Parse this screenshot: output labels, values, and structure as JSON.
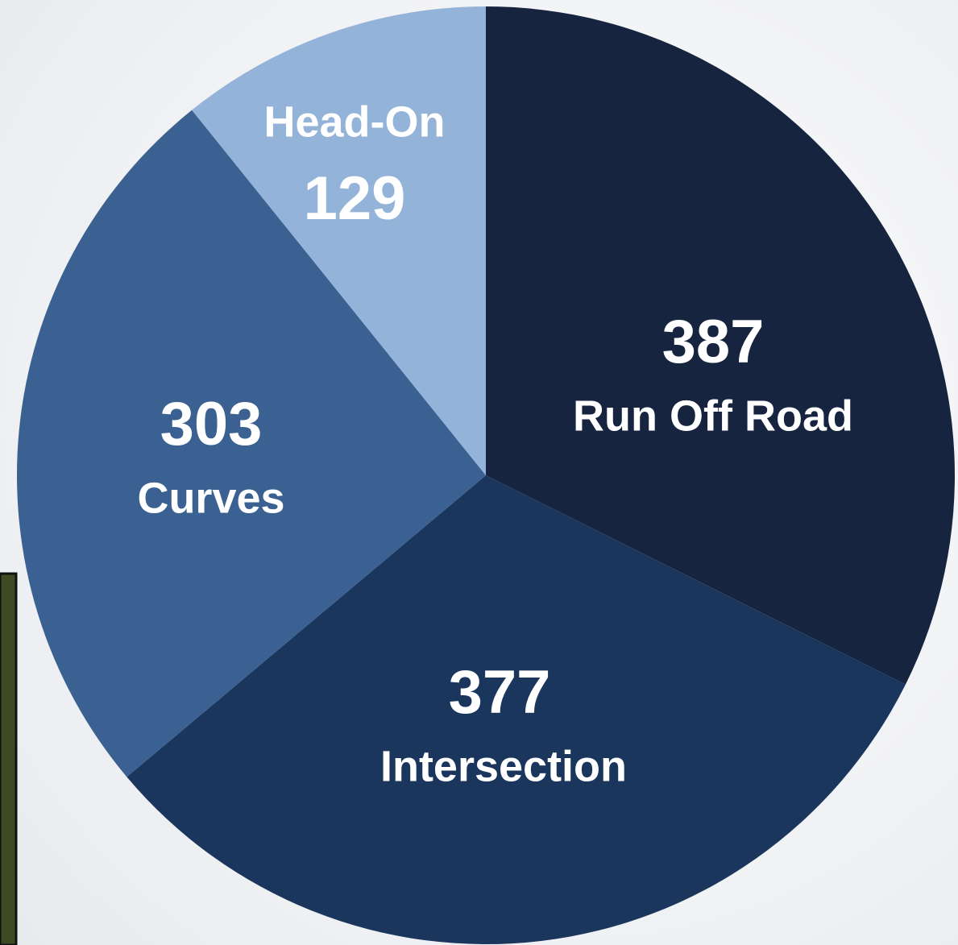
{
  "chart_data": {
    "type": "pie",
    "categories": [
      "Run Off Road",
      "Intersection",
      "Curves",
      "Head-On"
    ],
    "values": [
      387,
      377,
      303,
      129
    ],
    "colors": [
      "#16243f",
      "#1b365d",
      "#3a6191",
      "#94b3d8"
    ]
  }
}
